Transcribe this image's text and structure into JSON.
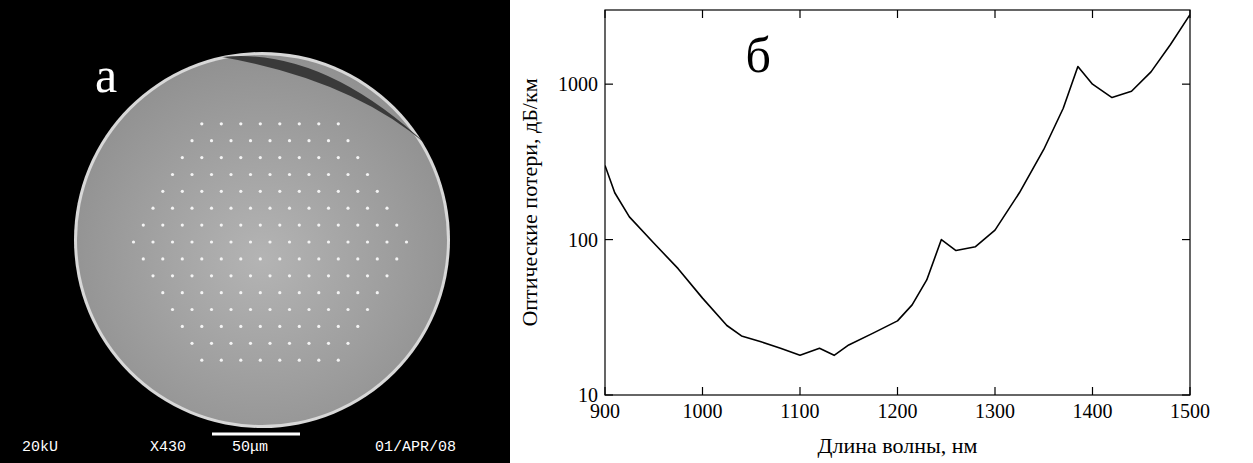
{
  "sem_image": {
    "letter": "а",
    "labels": [
      "20kU",
      "X430",
      "50μm",
      "01/APR/08"
    ]
  },
  "chart_data": {
    "type": "line",
    "annotations": [
      "б"
    ],
    "x_label": "Длина волны, нм",
    "y_label": "Оптические потери, дБ/км",
    "log": "y",
    "x": [
      900,
      910,
      925,
      950,
      975,
      1000,
      1025,
      1040,
      1060,
      1080,
      1100,
      1120,
      1135,
      1150,
      1175,
      1200,
      1215,
      1230,
      1245,
      1260,
      1280,
      1300,
      1325,
      1350,
      1370,
      1385,
      1400,
      1420,
      1440,
      1460,
      1480,
      1500
    ],
    "series": [
      {
        "color": "#000000",
        "values": [
          300,
          200,
          140,
          95,
          65,
          42,
          28,
          24,
          22,
          20,
          18,
          20,
          18,
          21,
          25,
          30,
          38,
          55,
          100,
          85,
          90,
          115,
          200,
          380,
          700,
          1300,
          1000,
          820,
          900,
          1200,
          1800,
          2800
        ]
      }
    ],
    "xlim": [
      900,
      1500
    ],
    "xticks": [
      900,
      1000,
      1100,
      1200,
      1300,
      1400,
      1500
    ],
    "ylim": [
      10,
      3000
    ],
    "yticks": [
      10,
      100,
      1000
    ]
  }
}
